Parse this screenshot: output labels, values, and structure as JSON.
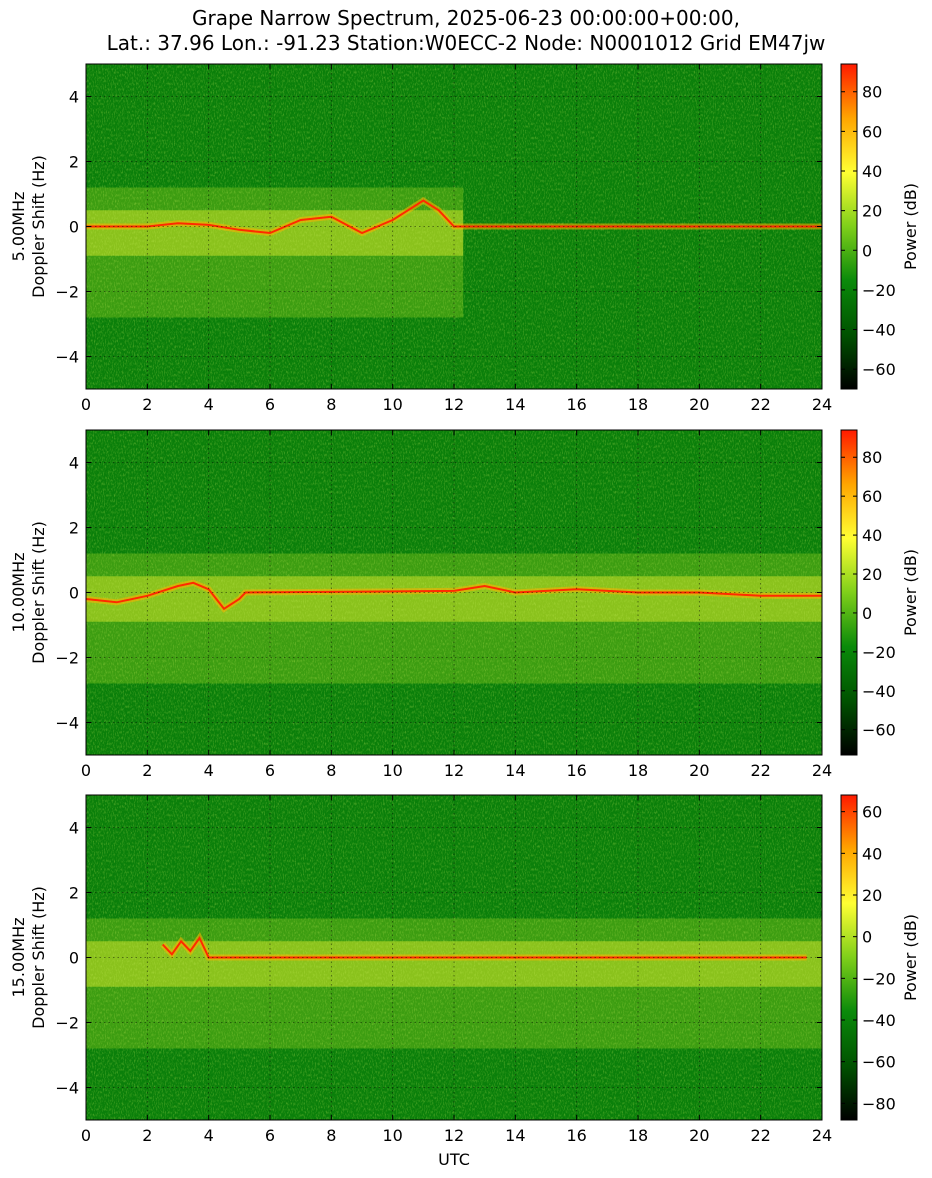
{
  "figure": {
    "title_line1": "Grape Narrow Spectrum, 2025-06-23 00:00:00+00:00,",
    "title_line2": "Lat.: 37.96 Lon.: -91.23 Station:W0ECC-2 Node: N0001012 Grid EM47jw",
    "xlabel": "UTC"
  },
  "colors": {
    "background_field": "#0a7f0a",
    "colormap": [
      "#000000",
      "#005200",
      "#0a8a0a",
      "#7fcf1a",
      "#ffff33",
      "#ffa500",
      "#ff1a00"
    ]
  },
  "chart_data": [
    {
      "type": "heatmap",
      "ylabel": "5.00MHz\nDoppler Shift (Hz)",
      "xlabel": "",
      "xlim": [
        0,
        24
      ],
      "ylim": [
        -5,
        5
      ],
      "x_ticks": [
        0,
        2,
        4,
        6,
        8,
        10,
        12,
        14,
        16,
        18,
        20,
        22,
        24
      ],
      "y_ticks": [
        -4,
        -2,
        0,
        2,
        4
      ],
      "grid": true,
      "colorbar": {
        "label": "Power (dB)",
        "range": [
          -70,
          94
        ],
        "ticks": [
          -60,
          -40,
          -20,
          0,
          20,
          40,
          60,
          80
        ]
      },
      "carrier_trace": {
        "x": [
          0,
          2,
          3,
          4,
          5,
          6,
          7,
          8,
          9,
          10,
          11,
          11.5,
          12,
          14,
          16,
          18,
          20,
          22,
          24
        ],
        "y": [
          0,
          0,
          0.1,
          0.05,
          -0.1,
          -0.2,
          0.2,
          0.3,
          -0.2,
          0.2,
          0.8,
          0.5,
          0,
          0,
          0,
          0,
          0,
          0,
          0
        ]
      },
      "active_band_hours": [
        0,
        12.3
      ],
      "quiet_band_hours": [
        12.3,
        24
      ]
    },
    {
      "type": "heatmap",
      "ylabel": "10.00MHz\nDoppler Shift (Hz)",
      "xlabel": "",
      "xlim": [
        0,
        24
      ],
      "ylim": [
        -5,
        5
      ],
      "x_ticks": [
        0,
        2,
        4,
        6,
        8,
        10,
        12,
        14,
        16,
        18,
        20,
        22,
        24
      ],
      "y_ticks": [
        -4,
        -2,
        0,
        2,
        4
      ],
      "grid": true,
      "colorbar": {
        "label": "Power (dB)",
        "range": [
          -73,
          94
        ],
        "ticks": [
          -60,
          -40,
          -20,
          0,
          20,
          40,
          60,
          80
        ]
      },
      "carrier_trace": {
        "x": [
          0,
          1,
          2,
          3,
          3.5,
          4,
          4.5,
          5,
          5.2,
          12,
          13,
          14,
          16,
          18,
          20,
          22,
          24
        ],
        "y": [
          -0.2,
          -0.3,
          -0.1,
          0.2,
          0.3,
          0.1,
          -0.5,
          -0.2,
          0,
          0.05,
          0.2,
          0,
          0.1,
          0,
          0,
          -0.1,
          -0.1
        ]
      },
      "active_band_hours": [
        0,
        24
      ]
    },
    {
      "type": "heatmap",
      "ylabel": "15.00MHz\nDoppler Shift (Hz)",
      "xlabel": "UTC",
      "xlim": [
        0,
        24
      ],
      "ylim": [
        -5,
        5
      ],
      "x_ticks": [
        0,
        2,
        4,
        6,
        8,
        10,
        12,
        14,
        16,
        18,
        20,
        22,
        24
      ],
      "y_ticks": [
        -4,
        -2,
        0,
        2,
        4
      ],
      "grid": true,
      "colorbar": {
        "label": "Power (dB)",
        "range": [
          -88,
          68
        ],
        "ticks": [
          -80,
          -60,
          -40,
          -20,
          0,
          20,
          40,
          60
        ]
      },
      "carrier_trace": {
        "x": [
          2.5,
          2.8,
          3.1,
          3.4,
          3.7,
          4.0,
          12.1,
          14,
          16,
          18,
          20,
          22,
          23.5
        ],
        "y": [
          0.4,
          0.1,
          0.5,
          0.2,
          0.6,
          0.0,
          0.0,
          0.0,
          0.0,
          0.0,
          0.0,
          0.0,
          0.0
        ]
      },
      "active_band_hours": [
        0,
        24
      ]
    }
  ]
}
